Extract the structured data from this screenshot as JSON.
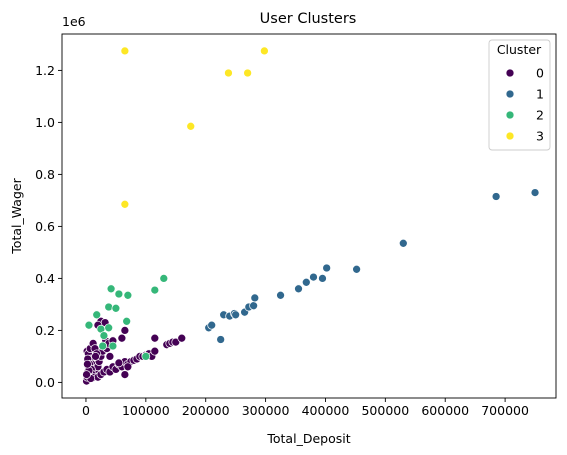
{
  "chart_data": {
    "type": "scatter",
    "title": "User Clusters",
    "xlabel": "Total_Deposit",
    "ylabel": "Total_Wager",
    "y_offset_text": "1e6",
    "xlim": [
      -40000,
      785000
    ],
    "ylim": [
      -0.06,
      1.34
    ],
    "x_ticks": [
      0,
      100000,
      200000,
      300000,
      400000,
      500000,
      600000,
      700000
    ],
    "x_tick_labels": [
      "0",
      "100000",
      "200000",
      "300000",
      "400000",
      "500000",
      "600000",
      "700000"
    ],
    "y_ticks": [
      0.0,
      0.2,
      0.4,
      0.6,
      0.8,
      1.0,
      1.2
    ],
    "y_tick_labels": [
      "0.0",
      "0.2",
      "0.4",
      "0.6",
      "0.8",
      "1.0",
      "1.2"
    ],
    "grid": false,
    "legend": {
      "title": "Cluster",
      "placement": "top-right"
    },
    "series": [
      {
        "name": "0",
        "color": "#440154",
        "points": [
          [
            1000,
            0.005
          ],
          [
            2000,
            0.02
          ],
          [
            3000,
            0.04
          ],
          [
            4000,
            0.06
          ],
          [
            5000,
            0.08
          ],
          [
            6000,
            0.1
          ],
          [
            2000,
            0.12
          ],
          [
            4000,
            0.11
          ],
          [
            7000,
            0.13
          ],
          [
            8000,
            0.09
          ],
          [
            10000,
            0.07
          ],
          [
            12000,
            0.05
          ],
          [
            15000,
            0.03
          ],
          [
            18000,
            0.04
          ],
          [
            20000,
            0.06
          ],
          [
            22000,
            0.08
          ],
          [
            25000,
            0.1
          ],
          [
            28000,
            0.12
          ],
          [
            30000,
            0.14
          ],
          [
            33000,
            0.16
          ],
          [
            35000,
            0.13
          ],
          [
            38000,
            0.15
          ],
          [
            12000,
            0.15
          ],
          [
            15000,
            0.13
          ],
          [
            18000,
            0.11
          ],
          [
            3000,
            0.09
          ],
          [
            6000,
            0.07
          ],
          [
            9000,
            0.05
          ],
          [
            11000,
            0.03
          ],
          [
            14000,
            0.02
          ],
          [
            20000,
            0.02
          ],
          [
            25000,
            0.03
          ],
          [
            30000,
            0.04
          ],
          [
            35000,
            0.05
          ],
          [
            40000,
            0.04
          ],
          [
            45000,
            0.06
          ],
          [
            50000,
            0.05
          ],
          [
            55000,
            0.07
          ],
          [
            60000,
            0.06
          ],
          [
            65000,
            0.08
          ],
          [
            70000,
            0.07
          ],
          [
            75000,
            0.08
          ],
          [
            80000,
            0.085
          ],
          [
            85000,
            0.09
          ],
          [
            90000,
            0.1
          ],
          [
            95000,
            0.1
          ],
          [
            100000,
            0.105
          ],
          [
            105000,
            0.11
          ],
          [
            110000,
            0.1
          ],
          [
            115000,
            0.12
          ],
          [
            135000,
            0.145
          ],
          [
            140000,
            0.15
          ],
          [
            145000,
            0.155
          ],
          [
            150000,
            0.155
          ],
          [
            160000,
            0.17
          ],
          [
            115000,
            0.17
          ],
          [
            25000,
            0.235
          ],
          [
            32000,
            0.23
          ],
          [
            65000,
            0.2
          ],
          [
            45000,
            0.16
          ],
          [
            60000,
            0.17
          ],
          [
            40000,
            0.1
          ],
          [
            20000,
            0.22
          ],
          [
            8000,
            0.015
          ],
          [
            5000,
            0.045
          ],
          [
            65000,
            0.03
          ],
          [
            55000,
            0.075
          ],
          [
            70000,
            0.06
          ],
          [
            1000,
            0.03
          ],
          [
            2500,
            0.07
          ],
          [
            16000,
            0.1
          ]
        ]
      },
      {
        "name": "1",
        "color": "#31688e",
        "points": [
          [
            205000,
            0.21
          ],
          [
            210000,
            0.22
          ],
          [
            225000,
            0.165
          ],
          [
            230000,
            0.26
          ],
          [
            240000,
            0.255
          ],
          [
            248000,
            0.265
          ],
          [
            250000,
            0.26
          ],
          [
            265000,
            0.27
          ],
          [
            272000,
            0.29
          ],
          [
            280000,
            0.295
          ],
          [
            282000,
            0.325
          ],
          [
            325000,
            0.335
          ],
          [
            355000,
            0.36
          ],
          [
            368000,
            0.385
          ],
          [
            380000,
            0.405
          ],
          [
            395000,
            0.4
          ],
          [
            402000,
            0.44
          ],
          [
            452000,
            0.435
          ],
          [
            530000,
            0.535
          ],
          [
            685000,
            0.715
          ],
          [
            750000,
            0.73
          ]
        ]
      },
      {
        "name": "2",
        "color": "#35b779",
        "points": [
          [
            5000,
            0.22
          ],
          [
            18000,
            0.26
          ],
          [
            25000,
            0.205
          ],
          [
            38000,
            0.29
          ],
          [
            42000,
            0.36
          ],
          [
            50000,
            0.285
          ],
          [
            55000,
            0.34
          ],
          [
            68000,
            0.235
          ],
          [
            70000,
            0.335
          ],
          [
            100000,
            0.1
          ],
          [
            115000,
            0.355
          ],
          [
            130000,
            0.4
          ],
          [
            38000,
            0.21
          ],
          [
            30000,
            0.18
          ],
          [
            45000,
            0.14
          ],
          [
            28000,
            0.14
          ]
        ]
      },
      {
        "name": "3",
        "color": "#fde725",
        "points": [
          [
            65000,
            1.275
          ],
          [
            65000,
            0.685
          ],
          [
            175000,
            0.985
          ],
          [
            238000,
            1.19
          ],
          [
            270000,
            1.19
          ],
          [
            298000,
            1.275
          ]
        ]
      }
    ]
  }
}
